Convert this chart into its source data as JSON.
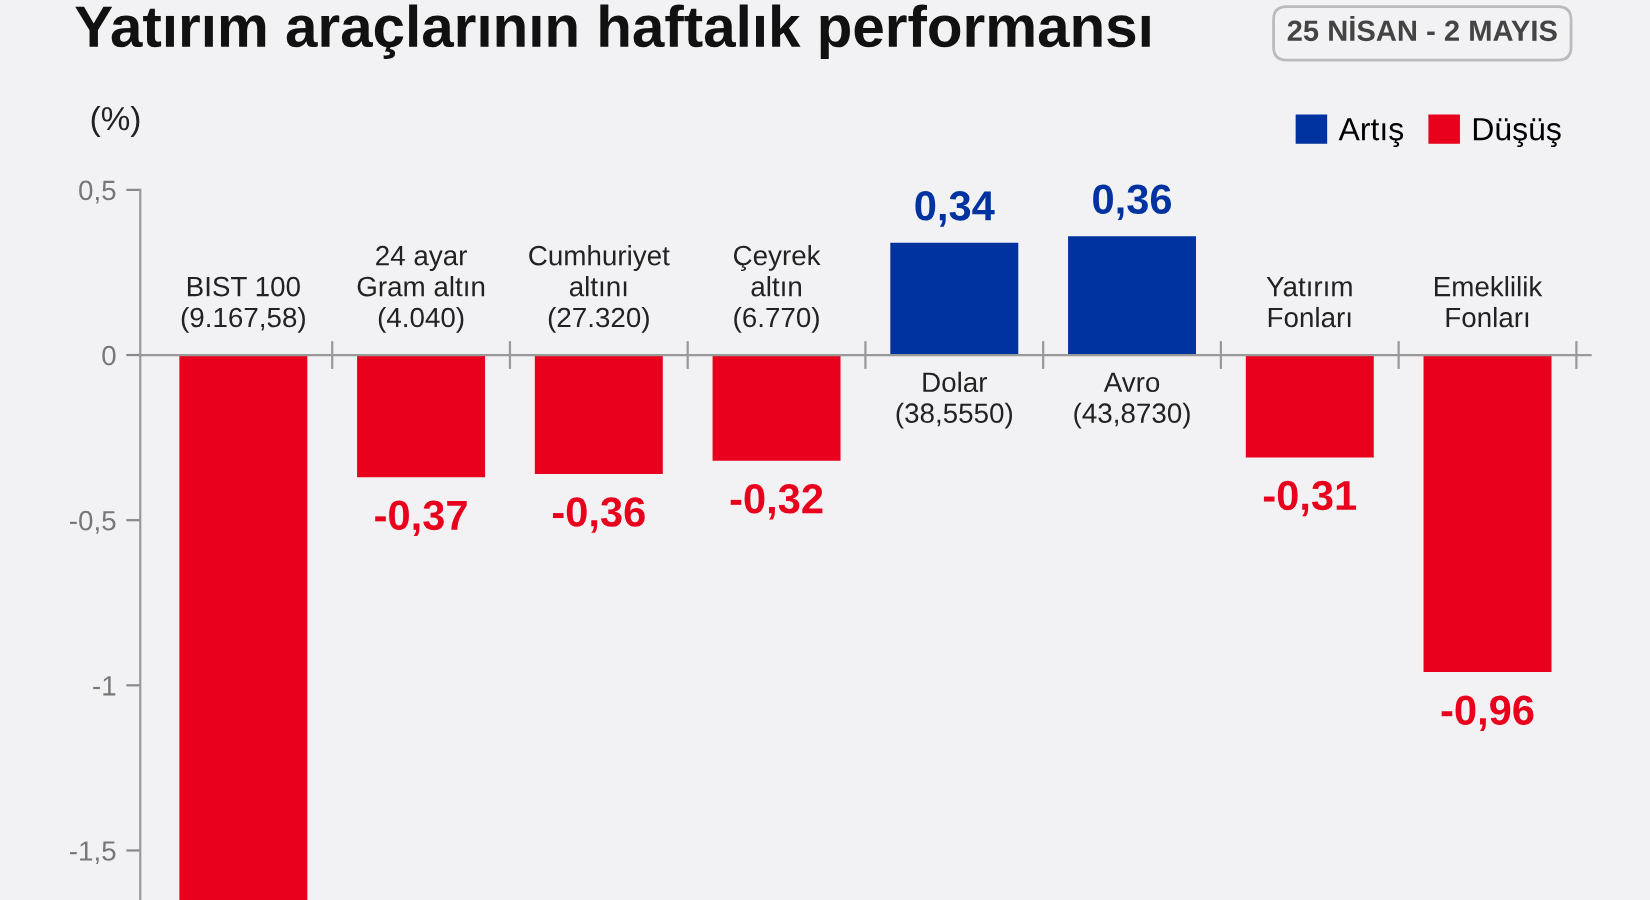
{
  "chart_data": {
    "type": "bar",
    "title": "Yatırım araçlarının haftalık performansı",
    "subtitle": "25 NİSAN - 2 MAYIS",
    "ylabel": "(%)",
    "categories": [
      "BIST 100\n(9.167,58)",
      "24 ayar\nGram altın\n(4.040)",
      "Cumhuriyet\naltını\n(27.320)",
      "Çeyrek\naltın\n(6.770)",
      "Dolar\n(38,5550)",
      "Avro\n(43,8730)",
      "Yatırım\nFonları",
      "Emeklilik\nFonları"
    ],
    "series": [
      {
        "name": "Artış",
        "color": "#0033a0",
        "values": [
          null,
          null,
          null,
          null,
          0.34,
          0.36,
          null,
          null
        ],
        "value_labels": [
          null,
          null,
          null,
          null,
          "0,34",
          "0,36",
          null,
          null
        ]
      },
      {
        "name": "Düşüş",
        "color": "#e8001c",
        "values": [
          -1.65,
          -0.37,
          -0.36,
          -0.32,
          null,
          null,
          -0.31,
          -0.96
        ],
        "value_labels": [
          null,
          "-0,37",
          "-0,36",
          "-0,32",
          null,
          null,
          "-0,31",
          "-0,96"
        ]
      }
    ],
    "ylim": [
      -1.65,
      0.5
    ],
    "yticks": [
      {
        "value": 0.5,
        "label": "0,5"
      },
      0,
      {
        "value": -0.5,
        "label": "-0,5"
      },
      -1,
      {
        "value": -1.5,
        "label": "-1,5"
      }
    ],
    "grid": false,
    "legend": "top right"
  }
}
